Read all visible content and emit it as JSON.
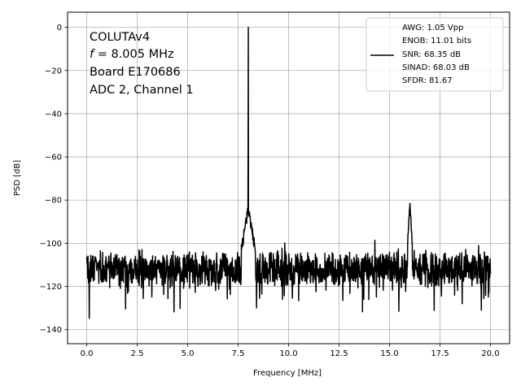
{
  "chart_data": {
    "type": "line",
    "xlabel": "Frequency [MHz]",
    "ylabel": "PSD [dB]",
    "xlim": [
      -0.95,
      20.95
    ],
    "ylim": [
      -146.5,
      7
    ],
    "xticks": [
      0.0,
      2.5,
      5.0,
      7.5,
      10.0,
      12.5,
      15.0,
      17.5,
      20.0
    ],
    "xtick_labels": [
      "0.0",
      "2.5",
      "5.0",
      "7.5",
      "10.0",
      "12.5",
      "15.0",
      "17.5",
      "20.0"
    ],
    "yticks": [
      0,
      -20,
      -40,
      -60,
      -80,
      -100,
      -120,
      -140
    ],
    "ytick_labels": [
      "0",
      "−20",
      "−40",
      "−60",
      "−80",
      "−100",
      "−120",
      "−140"
    ],
    "grid": true,
    "line_color": "#000000",
    "annotation": {
      "line1": "COLUTAv4",
      "line2_italic": "f",
      "line2_rest": " = 8.005 MHz",
      "line3": "Board E170686",
      "line4": "ADC 2, Channel 1"
    },
    "legend": {
      "placement": "top-right",
      "entries": [
        "AWG: 1.05 Vpp",
        "ENOB: 11.01 bits",
        "SNR: 68.35 dB",
        "SINAD: 68.03 dB",
        "SFDR: 81.67"
      ]
    },
    "series": [
      {
        "x_start": 0.0,
        "x_end": 20.0,
        "noise_floor_db": -112,
        "noise_min_db": -140,
        "noise_max_db": -98,
        "peaks": [
          {
            "freq_mhz": 8.005,
            "psd_db": 0
          },
          {
            "freq_mhz": 7.98,
            "psd_db": -84
          },
          {
            "freq_mhz": 16.01,
            "psd_db": -81.67
          }
        ]
      }
    ]
  }
}
